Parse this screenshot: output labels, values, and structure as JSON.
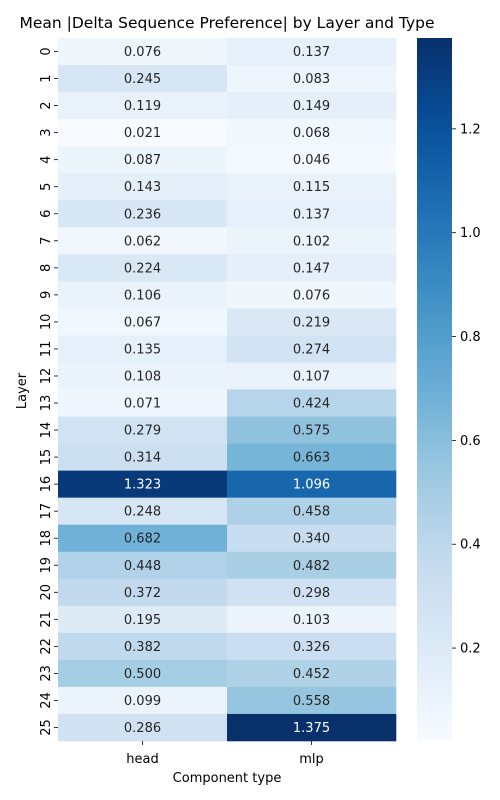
{
  "chart_data": {
    "type": "heatmap",
    "title": "Mean |Delta Sequence Preference| by Layer and Type",
    "xlabel": "Component type",
    "ylabel": "Layer",
    "columns": [
      "head",
      "mlp"
    ],
    "rows": [
      "0",
      "1",
      "2",
      "3",
      "4",
      "5",
      "6",
      "7",
      "8",
      "9",
      "10",
      "11",
      "12",
      "13",
      "14",
      "15",
      "16",
      "17",
      "18",
      "19",
      "20",
      "21",
      "22",
      "23",
      "24",
      "25"
    ],
    "values": [
      [
        0.076,
        0.137
      ],
      [
        0.245,
        0.083
      ],
      [
        0.119,
        0.149
      ],
      [
        0.021,
        0.068
      ],
      [
        0.087,
        0.046
      ],
      [
        0.143,
        0.115
      ],
      [
        0.236,
        0.137
      ],
      [
        0.062,
        0.102
      ],
      [
        0.224,
        0.147
      ],
      [
        0.106,
        0.076
      ],
      [
        0.067,
        0.219
      ],
      [
        0.135,
        0.274
      ],
      [
        0.108,
        0.107
      ],
      [
        0.071,
        0.424
      ],
      [
        0.279,
        0.575
      ],
      [
        0.314,
        0.663
      ],
      [
        1.323,
        1.096
      ],
      [
        0.248,
        0.458
      ],
      [
        0.682,
        0.34
      ],
      [
        0.448,
        0.482
      ],
      [
        0.372,
        0.298
      ],
      [
        0.195,
        0.103
      ],
      [
        0.382,
        0.326
      ],
      [
        0.5,
        0.452
      ],
      [
        0.099,
        0.558
      ],
      [
        0.286,
        1.375
      ]
    ],
    "cell_labels": [
      [
        "0.076",
        "0.137"
      ],
      [
        "0.245",
        "0.083"
      ],
      [
        "0.119",
        "0.149"
      ],
      [
        "0.021",
        "0.068"
      ],
      [
        "0.087",
        "0.046"
      ],
      [
        "0.143",
        "0.115"
      ],
      [
        "0.236",
        "0.137"
      ],
      [
        "0.062",
        "0.102"
      ],
      [
        "0.224",
        "0.147"
      ],
      [
        "0.106",
        "0.076"
      ],
      [
        "0.067",
        "0.219"
      ],
      [
        "0.135",
        "0.274"
      ],
      [
        "0.108",
        "0.107"
      ],
      [
        "0.071",
        "0.424"
      ],
      [
        "0.279",
        "0.575"
      ],
      [
        "0.314",
        "0.663"
      ],
      [
        "1.323",
        "1.096"
      ],
      [
        "0.248",
        "0.458"
      ],
      [
        "0.682",
        "0.340"
      ],
      [
        "0.448",
        "0.482"
      ],
      [
        "0.372",
        "0.298"
      ],
      [
        "0.195",
        "0.103"
      ],
      [
        "0.382",
        "0.326"
      ],
      [
        "0.500",
        "0.452"
      ],
      [
        "0.099",
        "0.558"
      ],
      [
        "0.286",
        "1.375"
      ]
    ],
    "colormap": "Blues",
    "colorbar": {
      "min": 0.021,
      "max": 1.375,
      "ticks": [
        0.2,
        0.4,
        0.6,
        0.8,
        1.0,
        1.2
      ],
      "tick_labels": [
        "0.2",
        "0.4",
        "0.6",
        "0.8",
        "1.0",
        "1.2"
      ]
    },
    "grid": false,
    "legend": "colorbar-right"
  }
}
